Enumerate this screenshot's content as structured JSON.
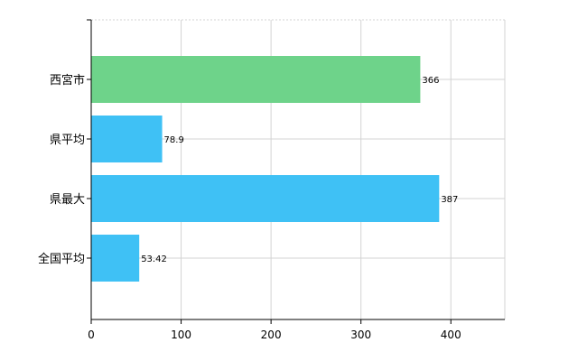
{
  "chart_data": {
    "type": "bar",
    "orientation": "horizontal",
    "title": "",
    "xlabel": "",
    "ylabel": "",
    "categories": [
      "西宮市",
      "県平均",
      "県最大",
      "全国平均"
    ],
    "values": [
      366,
      78.9,
      387,
      53.42
    ],
    "value_labels": [
      "366",
      "78.9",
      "387",
      "53.42"
    ],
    "bar_colors": [
      "#6ed38a",
      "#3fc1f5",
      "#3fc1f5",
      "#3fc1f5"
    ],
    "xlim": [
      0,
      460
    ],
    "xticks": [
      0,
      100,
      200,
      300,
      400
    ],
    "grid": true,
    "legend": "none"
  },
  "colors": {
    "grid": "#d3d3d3",
    "axis": "#000000",
    "highlight_bar": "#6ed38a",
    "bar": "#3fc1f5"
  }
}
